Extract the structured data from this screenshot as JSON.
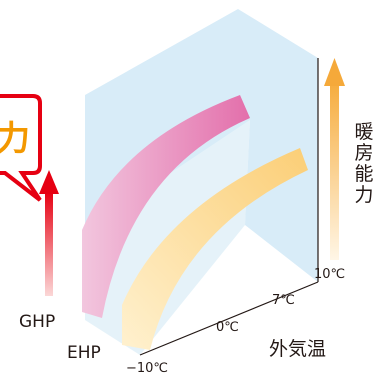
{
  "labels": {
    "ghp": "GHP",
    "ehp": "EHP",
    "outdoor_temp_axis": "外気温",
    "heating_capacity_axis": [
      "暖",
      "房",
      "能",
      "力"
    ]
  },
  "temperature_ticks": [
    "−10℃",
    "0℃",
    "7℃",
    "10℃"
  ],
  "colors": {
    "panel": "#d8ecf8",
    "ghp_curve": "#e880b4",
    "ehp_curve": "#fcd98a",
    "red_arrow": "#e60012",
    "orange_arrow": "#f7b248",
    "callout_border": "#e60012",
    "callout_text": "#f39800"
  }
}
